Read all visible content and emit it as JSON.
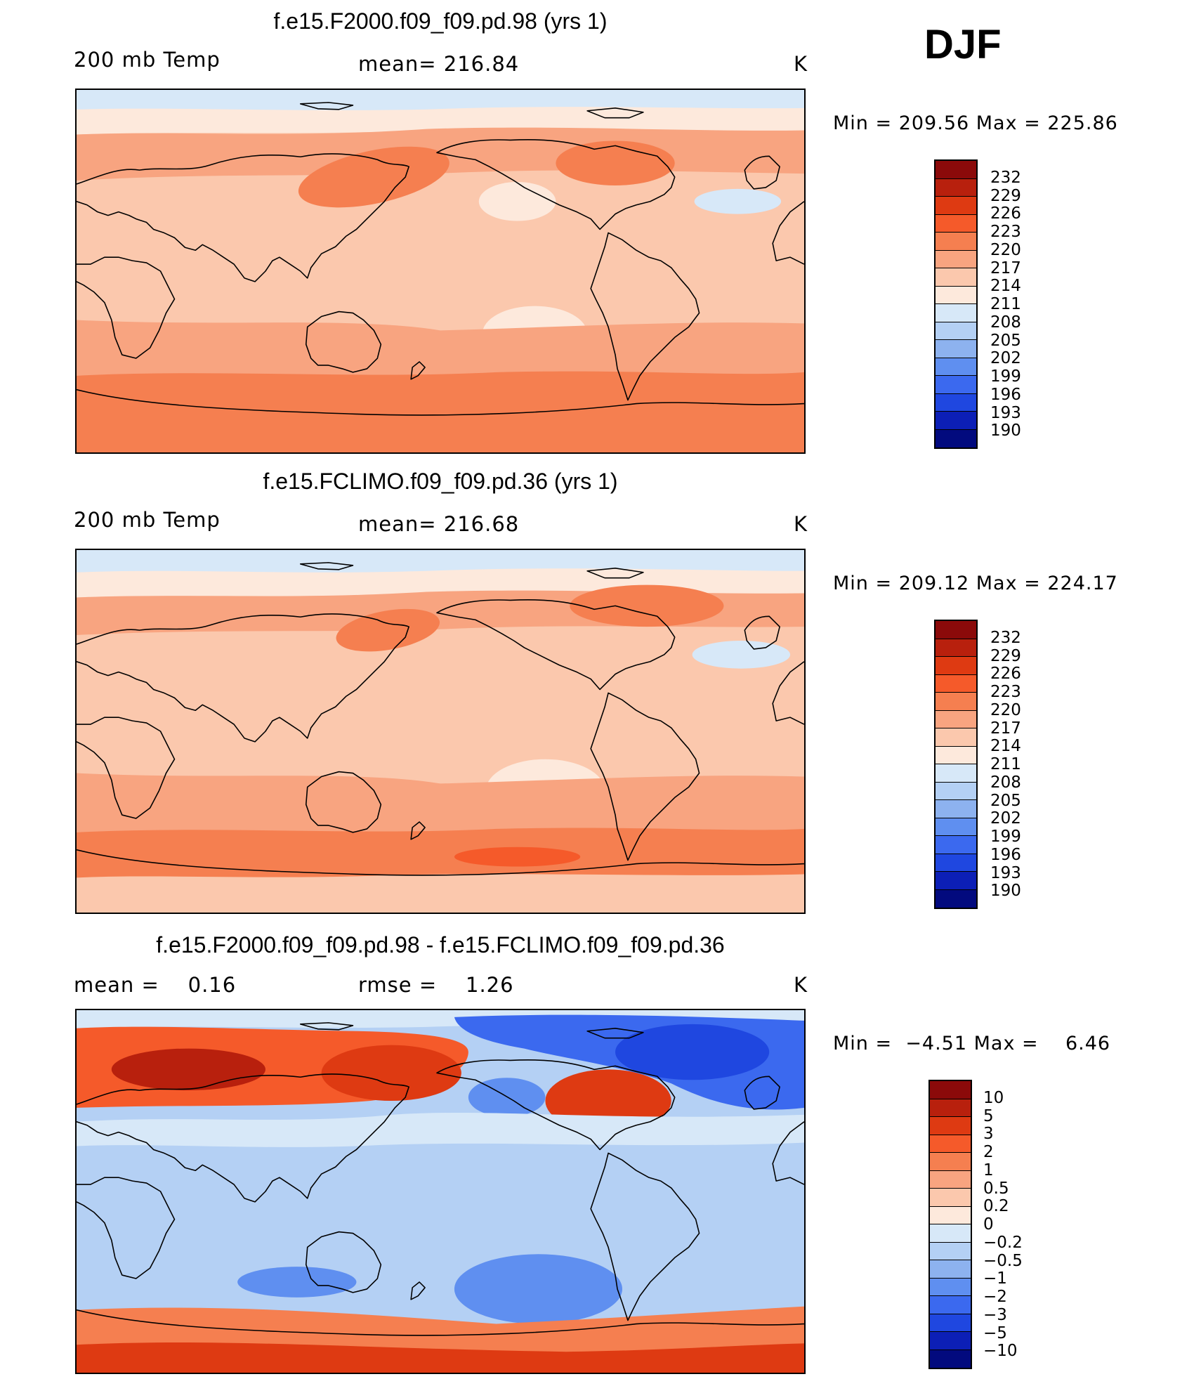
{
  "season": "DJF",
  "panels": [
    {
      "title": "f.e15.F2000.f09_f09.pd.98 (yrs 1)",
      "left_label": "200 mb Temp",
      "center_label": "mean= 216.84",
      "unit": "K",
      "minmax": "Min = 209.56 Max = 225.86",
      "levels": [
        "232",
        "229",
        "226",
        "223",
        "220",
        "217",
        "214",
        "211",
        "208",
        "205",
        "202",
        "199",
        "196",
        "193",
        "190"
      ],
      "colors": [
        "#8b0a0a",
        "#b8200d",
        "#de3a12",
        "#f55a2a",
        "#f57f50",
        "#f8a480",
        "#fbc8ad",
        "#fde9dc",
        "#d7e8f8",
        "#b4d0f4",
        "#8db2ef",
        "#5f8ff0",
        "#3b69ef",
        "#1f47e0",
        "#0c1fb6",
        "#020a7e"
      ],
      "field": {
        "background": "#fbc8ad",
        "features": [
          {
            "label": "polar north cold band",
            "color": "#d7e8f8"
          },
          {
            "label": "polar north cool band",
            "color": "#fde9dc"
          },
          {
            "label": "NH mid warm band",
            "color": "#f8a480"
          },
          {
            "label": "NW Pacific jet core",
            "color": "#f57f50"
          },
          {
            "label": "NE America warm core",
            "color": "#f57f50"
          },
          {
            "label": "Atlantic cool spot",
            "color": "#d7e8f8"
          },
          {
            "label": "N Pacific cool patch",
            "color": "#fde9dc"
          },
          {
            "label": "E Pacific cool patch",
            "color": "#fde9dc"
          },
          {
            "label": "SH mid band",
            "color": "#f8a480"
          },
          {
            "label": "southern warm belt",
            "color": "#f57f50"
          }
        ]
      }
    },
    {
      "title": "f.e15.FCLIMO.f09_f09.pd.36 (yrs 1)",
      "left_label": "200 mb Temp",
      "center_label": "mean= 216.68",
      "unit": "K",
      "minmax": "Min = 209.12 Max = 224.17",
      "levels": [
        "232",
        "229",
        "226",
        "223",
        "220",
        "217",
        "214",
        "211",
        "208",
        "205",
        "202",
        "199",
        "196",
        "193",
        "190"
      ],
      "colors": [
        "#8b0a0a",
        "#b8200d",
        "#de3a12",
        "#f55a2a",
        "#f57f50",
        "#f8a480",
        "#fbc8ad",
        "#fde9dc",
        "#d7e8f8",
        "#b4d0f4",
        "#8db2ef",
        "#5f8ff0",
        "#3b69ef",
        "#1f47e0",
        "#0c1fb6",
        "#020a7e"
      ],
      "field": {
        "background": "#fbc8ad",
        "features": [
          {
            "label": "polar north cold band",
            "color": "#d7e8f8"
          },
          {
            "label": "polar north cool band",
            "color": "#fde9dc"
          },
          {
            "label": "NH mid warm band",
            "color": "#f8a480"
          },
          {
            "label": "NW Pacific jet core",
            "color": "#f57f50"
          },
          {
            "label": "Canada warm core",
            "color": "#f57f50"
          },
          {
            "label": "Atlantic cool spot",
            "color": "#d7e8f8"
          },
          {
            "label": "E Pacific cool patch",
            "color": "#fde9dc"
          },
          {
            "label": "SH mid band",
            "color": "#f8a480"
          },
          {
            "label": "southern warm belt",
            "color": "#f57f50"
          },
          {
            "label": "southern core",
            "color": "#f55a2a"
          }
        ]
      }
    },
    {
      "title": "f.e15.F2000.f09_f09.pd.98 - f.e15.FCLIMO.f09_f09.pd.36",
      "left_label": "mean =    0.16",
      "center_label": "rmse =    1.26",
      "unit": "K",
      "minmax": "Min =  −4.51 Max =    6.46",
      "levels": [
        "10",
        "5",
        "3",
        "2",
        "1",
        "0.5",
        "0.2",
        "0",
        "−0.2",
        "−0.5",
        "−1",
        "−2",
        "−3",
        "−5",
        "−10"
      ],
      "colors": [
        "#8b0a0a",
        "#b8200d",
        "#de3a12",
        "#f55a2a",
        "#f57f50",
        "#f8a480",
        "#fbc8ad",
        "#fde9dc",
        "#d7e8f8",
        "#b4d0f4",
        "#8db2ef",
        "#5f8ff0",
        "#3b69ef",
        "#1f47e0",
        "#0c1fb6",
        "#020a7e"
      ],
      "field": {
        "background": "#b4d0f4",
        "features": [
          {
            "label": "Arctic cool band",
            "color": "#d7e8f8"
          },
          {
            "label": "Eurasia warm anomaly",
            "color": "#f55a2a"
          },
          {
            "label": "Eurasia warm core",
            "color": "#b8200d"
          },
          {
            "label": "E Asia warm anomaly",
            "color": "#de3a12"
          },
          {
            "label": "N America warm anomaly",
            "color": "#de3a12"
          },
          {
            "label": "Canada/Greenland cold anomaly",
            "color": "#3b69ef"
          },
          {
            "label": "Canada cold core",
            "color": "#1f47e0"
          },
          {
            "label": "N Pacific cold spot",
            "color": "#5f8ff0"
          },
          {
            "label": "Tropical mixed band",
            "color": "#d7e8f8"
          },
          {
            "label": "S Pacific cold anomaly",
            "color": "#5f8ff0"
          },
          {
            "label": "S Indian cold anomaly",
            "color": "#5f8ff0"
          },
          {
            "label": "Southern warm anomaly",
            "color": "#f57f50"
          },
          {
            "label": "Antarctic warm core",
            "color": "#de3a12"
          }
        ]
      }
    }
  ]
}
